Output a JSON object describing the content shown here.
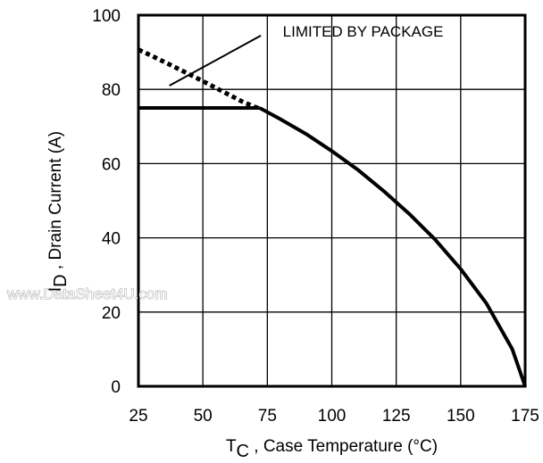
{
  "chart_data": {
    "type": "line",
    "xlabel_main": "T",
    "xlabel_sub": "C",
    "xlabel_rest": " , Case Temperature (°C)",
    "ylabel_main": "I",
    "ylabel_sub": "D",
    "ylabel_rest": " , Drain Current (A)",
    "xlim": [
      25,
      175
    ],
    "ylim": [
      0,
      100
    ],
    "x_ticks": [
      25,
      50,
      75,
      100,
      125,
      150,
      175
    ],
    "y_ticks": [
      0,
      20,
      40,
      60,
      80,
      100
    ],
    "grid": true,
    "annotation": "LIMITED BY PACKAGE",
    "series": [
      {
        "style": "dotted",
        "x": [
          25,
          30,
          35,
          40,
          45,
          50,
          55,
          60,
          65,
          70,
          72
        ],
        "y": [
          90.7,
          89.1,
          87.4,
          85.7,
          84.0,
          82.2,
          80.4,
          78.6,
          76.8,
          75.3,
          74.9
        ]
      },
      {
        "style": "solid",
        "x": [
          25,
          72
        ],
        "y": [
          75,
          75
        ]
      },
      {
        "style": "solid",
        "x": [
          72,
          80,
          90,
          100,
          110,
          120,
          130,
          140,
          150,
          160,
          170,
          175
        ],
        "y": [
          75,
          72.0,
          68.0,
          63.4,
          58.4,
          52.7,
          46.5,
          39.6,
          31.6,
          22.3,
          10.0,
          0
        ]
      }
    ]
  },
  "watermark": "www.DataSheet4U.com"
}
